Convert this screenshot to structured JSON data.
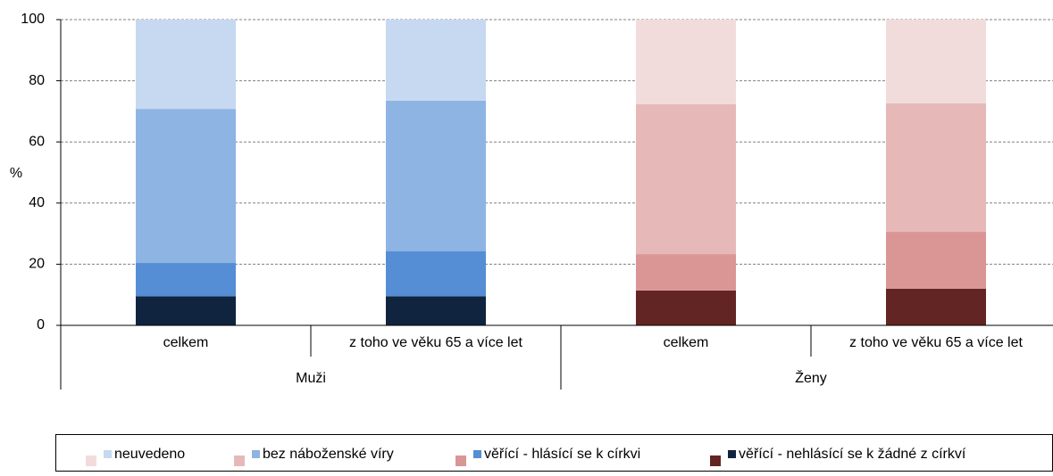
{
  "chart_data": {
    "type": "stacked-bar",
    "y_label": "%",
    "groups": [
      {
        "name": "Muži",
        "categories": [
          "celkem",
          "z toho ve věku 65 a více let"
        ]
      },
      {
        "name": "Ženy",
        "categories": [
          "celkem",
          "z toho ve věku 65 a více let"
        ]
      }
    ],
    "series": [
      {
        "name": "věřící - nehlásící se k žádné z církví",
        "colors": [
          "#10243f",
          "#632523"
        ],
        "values": [
          [
            9.5,
            9.5
          ],
          [
            11.4,
            12
          ]
        ]
      },
      {
        "name": "věřící - hlásící se k církvi",
        "colors": [
          "#558ed5",
          "#d99694"
        ],
        "values": [
          [
            10.9,
            14.7
          ],
          [
            11.9,
            18.6
          ]
        ]
      },
      {
        "name": "bez náboženské víry",
        "colors": [
          "#8eb4e3",
          "#e6b9b8"
        ],
        "values": [
          [
            50.4,
            49.3
          ],
          [
            49,
            42
          ]
        ]
      },
      {
        "name": "neuvedeno",
        "colors": [
          "#c6d9f1",
          "#f2dcdb"
        ],
        "values": [
          [
            29.2,
            26.5
          ],
          [
            27.7,
            27.4
          ]
        ]
      }
    ],
    "ylim": [
      0,
      100
    ],
    "yticks": [
      0,
      20,
      40,
      60,
      80,
      100
    ],
    "grid": true
  }
}
